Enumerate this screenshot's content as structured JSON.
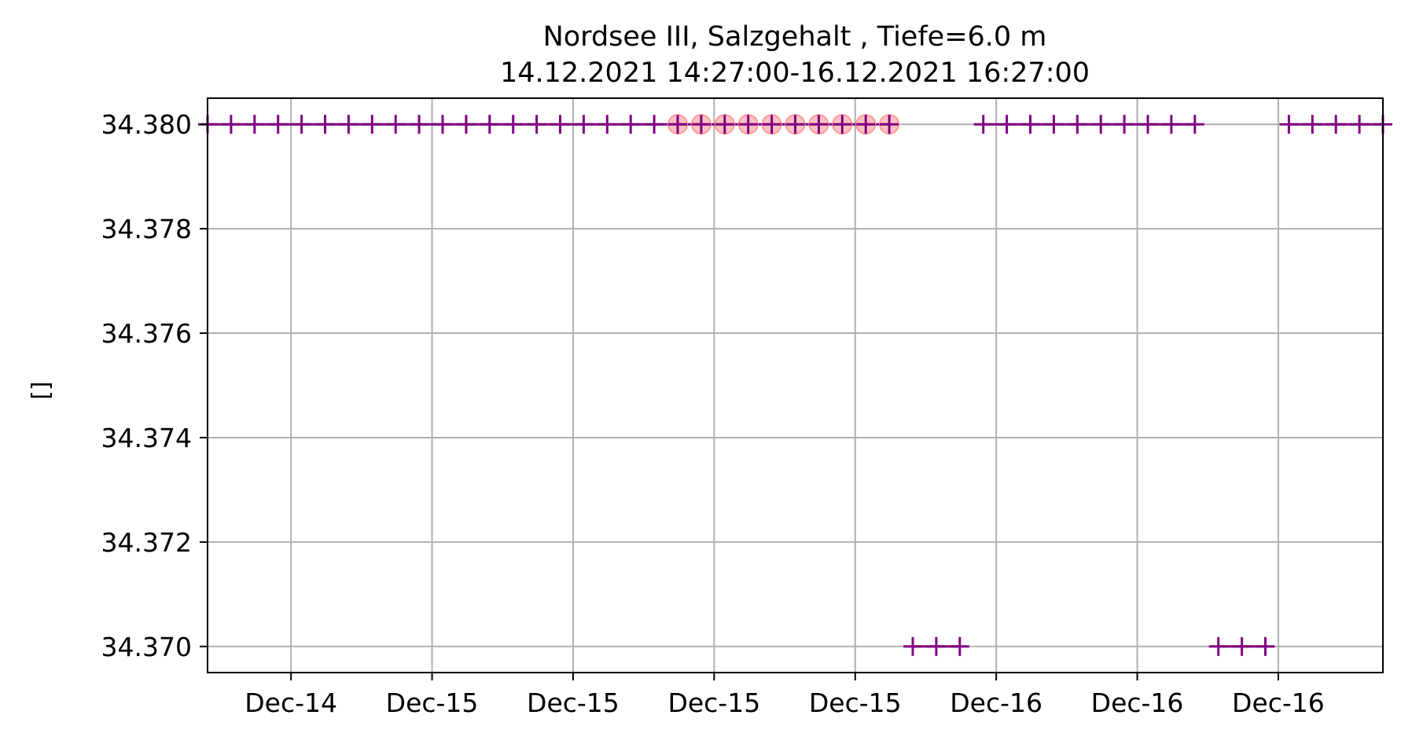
{
  "chart_data": {
    "type": "line",
    "title": "Nordsee III, Salzgehalt , Tiefe=6.0 m",
    "subtitle": "14.12.2021 14:27:00-16.12.2021 16:27:00",
    "xlabel": "",
    "ylabel": "[]",
    "x_tick_labels": [
      "Dec-14",
      "Dec-15",
      "Dec-15",
      "Dec-15",
      "Dec-15",
      "Dec-16",
      "Dec-16",
      "Dec-16"
    ],
    "y_ticks": [
      34.37,
      34.372,
      34.374,
      34.376,
      34.378,
      34.38
    ],
    "y_tick_labels": [
      "34.370",
      "34.372",
      "34.374",
      "34.376",
      "34.378",
      "34.380"
    ],
    "ylim": [
      34.3695,
      34.3805
    ],
    "x_range_hours": [
      14.45,
      64.45
    ],
    "grid": true,
    "colors": {
      "line": "#800080",
      "highlight": "#ff9999",
      "grid": "#b0b0b0"
    },
    "series": [
      {
        "style": "line-plus",
        "x_hours": [
          14.45,
          15.45,
          16.45,
          17.45,
          18.45,
          19.45,
          20.45,
          21.45,
          22.45,
          23.45,
          24.45,
          25.45,
          26.45,
          27.45,
          28.45,
          29.45,
          30.45,
          31.45,
          32.45,
          33.45,
          34.45,
          35.45,
          36.45,
          37.45,
          38.45,
          39.45,
          40.45,
          41.45,
          42.45,
          43.45,
          44.45,
          45.45,
          46.45,
          47.45,
          48.45,
          49.45,
          50.45,
          51.45,
          52.45,
          53.45,
          54.45,
          55.45,
          56.45,
          57.45,
          58.45,
          59.45,
          60.45,
          61.45,
          62.45,
          63.45,
          64.45
        ],
        "y": [
          34.38,
          34.38,
          34.38,
          34.38,
          34.38,
          34.38,
          34.38,
          34.38,
          34.38,
          34.38,
          34.38,
          34.38,
          34.38,
          34.38,
          34.38,
          34.38,
          34.38,
          34.38,
          34.38,
          34.38,
          34.38,
          34.38,
          34.38,
          34.38,
          34.38,
          34.38,
          34.38,
          34.38,
          34.38,
          34.38,
          34.37,
          34.37,
          34.37,
          34.38,
          34.38,
          34.38,
          34.38,
          34.38,
          34.38,
          34.38,
          34.38,
          34.38,
          34.38,
          34.37,
          34.37,
          34.37,
          34.38,
          34.38,
          34.38,
          34.38,
          34.38
        ]
      },
      {
        "style": "circles",
        "x_hours": [
          34.45,
          35.45,
          36.45,
          37.45,
          38.45,
          39.45,
          40.45,
          41.45,
          42.45,
          43.45
        ],
        "y": [
          34.38,
          34.38,
          34.38,
          34.38,
          34.38,
          34.38,
          34.38,
          34.38,
          34.38,
          34.38
        ]
      }
    ]
  }
}
